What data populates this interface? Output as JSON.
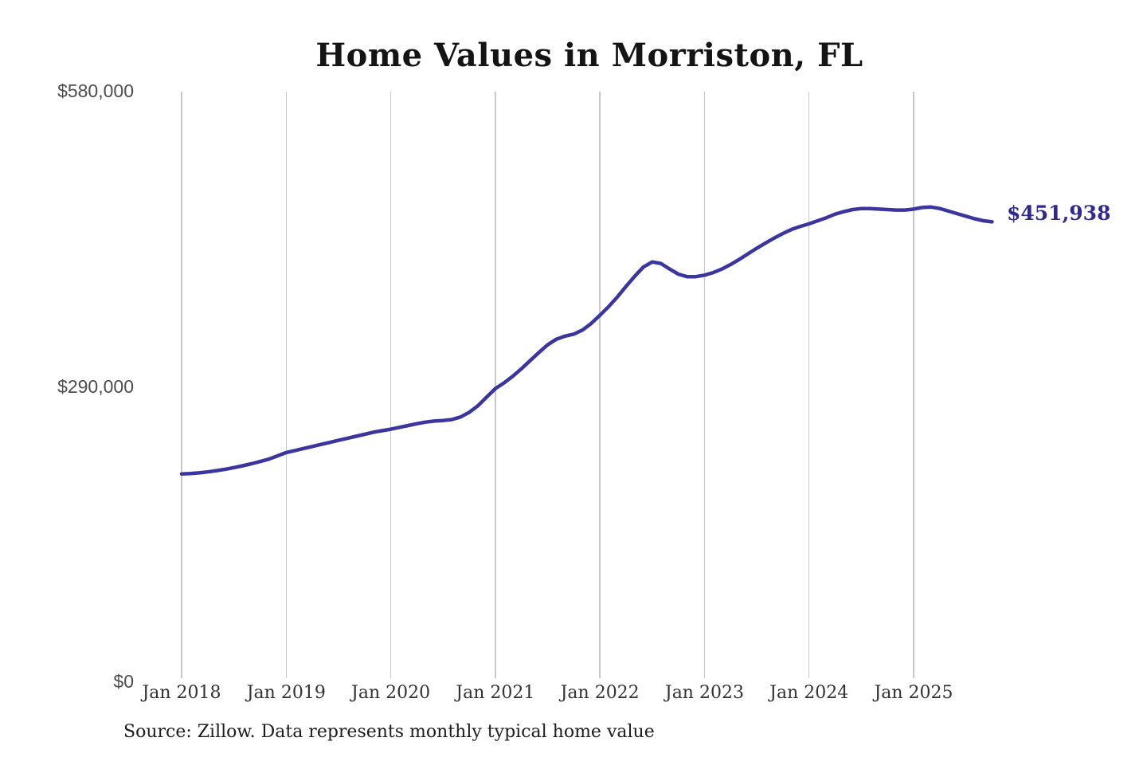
{
  "chart": {
    "title": "Home Values in Morriston, FL",
    "end_label": "$451,938",
    "source": "Source: Zillow. Data represents monthly typical home value",
    "colors": {
      "line": "#3b35a0",
      "end_label": "#2f2a91",
      "gridline": "#c8c8c8",
      "y_label": "#4d4d4d",
      "x_label": "#333333",
      "title": "#141414",
      "background": "#ffffff"
    }
  },
  "chart_data": {
    "type": "line",
    "title": "Home Values in Morriston, FL",
    "xlabel": "",
    "ylabel": "",
    "x_tick_labels": [
      "Jan 2018",
      "Jan 2019",
      "Jan 2020",
      "Jan 2021",
      "Jan 2022",
      "Jan 2023",
      "Jan 2024",
      "Jan 2025"
    ],
    "y_tick_labels": [
      "$0",
      "$290,000",
      "$580,000"
    ],
    "y_ticks": [
      0,
      290000,
      580000
    ],
    "ylim": [
      0,
      580000
    ],
    "grid": "vertical-only",
    "legend": "none",
    "x_interval": "monthly",
    "x_start": "Jan 2018",
    "x_end": "Oct 2025",
    "end_value": 451938,
    "series": [
      {
        "name": "Typical home value (USD)",
        "values": [
          204000,
          204300,
          205000,
          206000,
          207200,
          208600,
          210200,
          212000,
          214000,
          216200,
          218500,
          221700,
          225000,
          227000,
          229000,
          231000,
          233000,
          235000,
          237000,
          239000,
          241000,
          243000,
          245000,
          246500,
          248000,
          249800,
          251600,
          253400,
          255000,
          256000,
          256500,
          257500,
          260000,
          264500,
          271000,
          279500,
          288000,
          293500,
          300000,
          307500,
          315500,
          323500,
          331000,
          336500,
          339500,
          341500,
          345500,
          352000,
          360000,
          368500,
          378000,
          388500,
          398500,
          407500,
          412500,
          411000,
          405500,
          400500,
          398000,
          398000,
          399500,
          402000,
          405500,
          410000,
          415000,
          420500,
          426000,
          431000,
          436000,
          440500,
          444500,
          447500,
          450000,
          453000,
          456000,
          459500,
          462000,
          464000,
          465000,
          465000,
          464500,
          464000,
          463500,
          463500,
          464500,
          466000,
          466500,
          465000,
          462500,
          460000,
          457500,
          455000,
          453000,
          451938
        ]
      }
    ]
  }
}
